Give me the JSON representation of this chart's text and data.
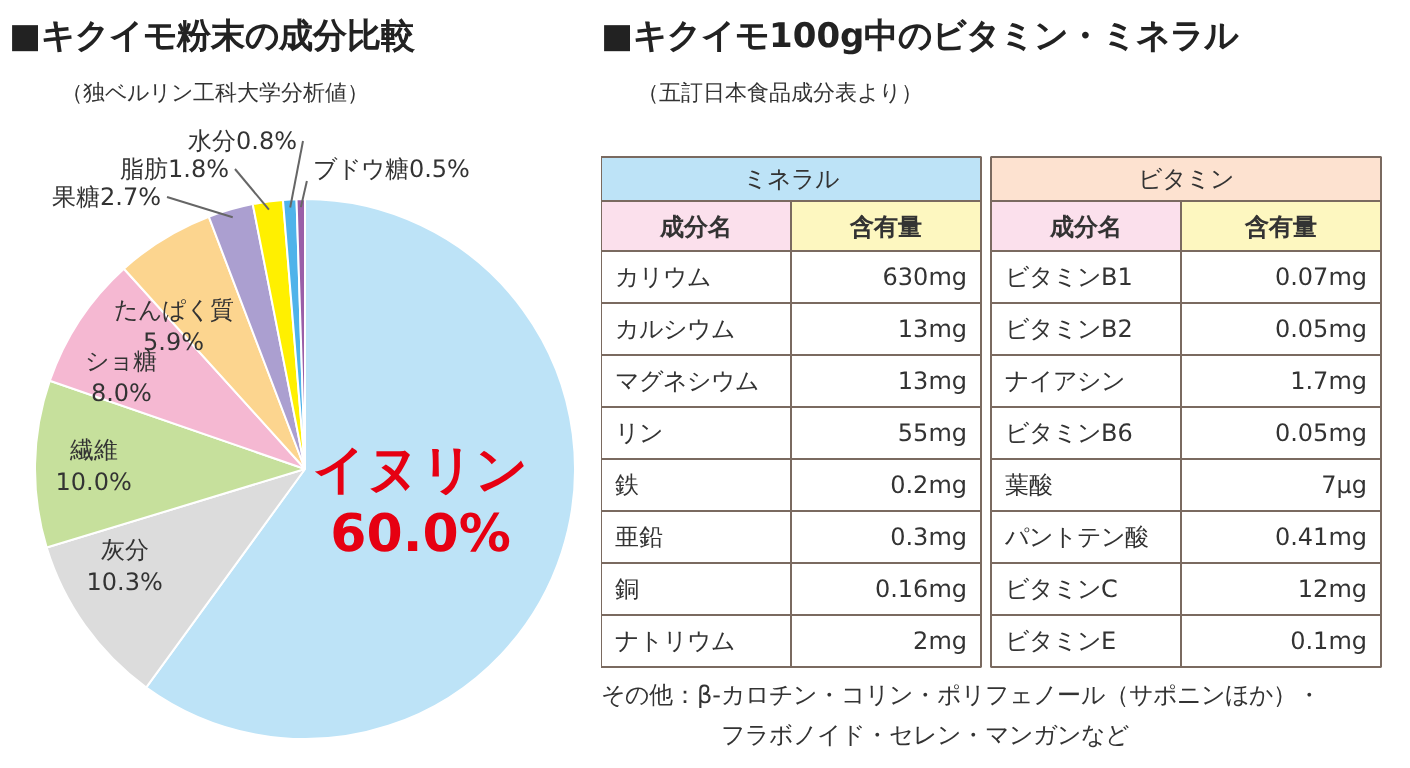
{
  "chart_data": [
    {
      "type": "pie",
      "title": "■キクイモ粉末の成分比較",
      "subtitle": "（独ベルリン工科大学分析値）",
      "categories": [
        "イヌリン",
        "灰分",
        "繊維",
        "ショ糖",
        "たんぱく質",
        "果糖",
        "脂肪",
        "水分",
        "ブドウ糖"
      ],
      "values": [
        60.0,
        10.3,
        10.0,
        8.0,
        5.9,
        2.7,
        1.8,
        0.8,
        0.5
      ],
      "value_labels": [
        "60.0%",
        "10.3%",
        "10.0%",
        "8.0%",
        "5.9%",
        "2.7%",
        "1.8%",
        "0.8%",
        "0.5%"
      ],
      "colors": [
        "#bde3f7",
        "#dcdcdc",
        "#c6e09c",
        "#f5b8d2",
        "#fcd58f",
        "#ab9fd0",
        "#fff000",
        "#4fb3ea",
        "#9a5fa8"
      ]
    },
    {
      "type": "other",
      "title": "■キクイモ100g中のビタミン・ミネラル",
      "subtitle": "（五訂日本食品成分表より）",
      "annotations": [
        "ミネラル",
        "成分名",
        "含有量",
        "カリウム",
        "630mg",
        "カルシウム",
        "13mg",
        "マグネシウム",
        "13mg",
        "リン",
        "55mg",
        "鉄",
        "0.2mg",
        "亜鉛",
        "0.3mg",
        "銅",
        "0.16mg",
        "ナトリウム",
        "2mg",
        "ビタミン",
        "成分名",
        "含有量",
        "ビタミンB1",
        "0.07mg",
        "ビタミンB2",
        "0.05mg",
        "ナイアシン",
        "1.7mg",
        "ビタミンB6",
        "0.05mg",
        "葉酸",
        "7μg",
        "パントテン酸",
        "0.41mg",
        "ビタミンC",
        "12mg",
        "ビタミンE",
        "0.1mg",
        "その他：β-カロチン・コリン・ポリフェノール（サポニンほか）・",
        "フラボノイド・セレン・マンガンなど"
      ]
    }
  ]
}
